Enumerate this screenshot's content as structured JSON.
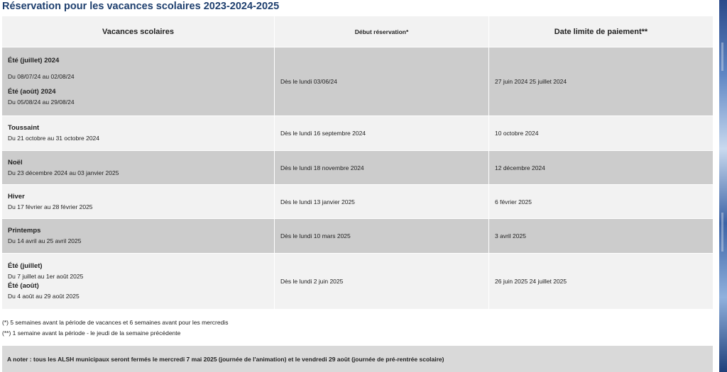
{
  "title": "Réservation pour les vacances scolaires 2023-2024-2025",
  "table": {
    "headers": [
      "Vacances scolaires",
      "Début réservation*",
      "Date limite de paiement**"
    ],
    "rows": [
      {
        "periods": [
          {
            "name": "Été (juillet) 2024",
            "dates": "Du 08/07/24 au 02/08/24"
          },
          {
            "name": "Été (août) 2024",
            "dates": "Du 05/08/24 au 29/08/24"
          }
        ],
        "start": "Dès le lundi 03/06/24",
        "deadline": "27 juin 2024 25 juillet 2024"
      },
      {
        "periods": [
          {
            "name": "Toussaint",
            "dates": "Du 21 octobre au 31 octobre 2024"
          }
        ],
        "start": "Dès le lundi 16 septembre 2024",
        "deadline": "10 octobre 2024"
      },
      {
        "periods": [
          {
            "name": "Noël",
            "dates": "Du 23 décembre 2024 au 03 janvier 2025"
          }
        ],
        "start": "Dès le lundi 18 novembre 2024",
        "deadline": "12 décembre 2024"
      },
      {
        "periods": [
          {
            "name": "Hiver",
            "dates": "Du 17 février au 28 février 2025"
          }
        ],
        "start": "Dès le lundi 13 janvier 2025",
        "deadline": "6 février 2025"
      },
      {
        "periods": [
          {
            "name": "Printemps",
            "dates": "Du 14 avril au 25 avril 2025"
          }
        ],
        "start": "Dès le lundi 10 mars 2025",
        "deadline": "3 avril 2025"
      },
      {
        "periods": [
          {
            "name": "Été (juillet)",
            "dates": "Du 7 juillet au 1er août 2025"
          },
          {
            "name": "Été (août)",
            "dates": "Du 4 août au 29 août 2025"
          }
        ],
        "start": "Dès le lundi 2 juin 2025",
        "deadline": "26 juin 2025 24 juillet 2025"
      }
    ]
  },
  "notes": {
    "note1": "(*) 5 semaines avant la période de vacances et 6 semaines avant pour les mercredis",
    "note2": "(**) 1 semaine avant la période - le jeudi de la semaine précédente"
  },
  "banner": "A noter : tous les ALSH municipaux seront fermés le mercredi 7 mai 2025 (journée de l'animation) et le vendredi 29 août (journée de pré-rentrée scolaire)",
  "colors": {
    "title": "#1e3f6e",
    "row_dark": "#cccccc",
    "row_light": "#f2f2f2",
    "banner": "#d9d9d9"
  }
}
